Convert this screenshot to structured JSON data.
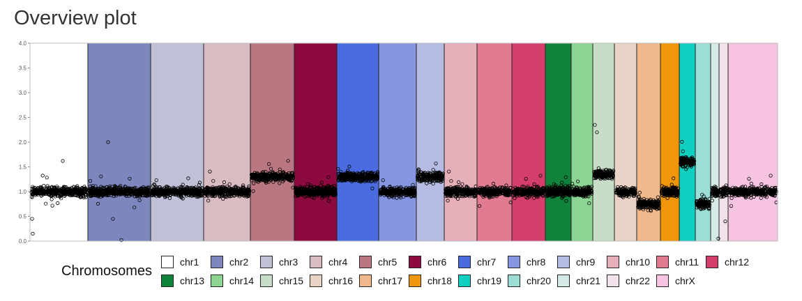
{
  "title": "Overview plot",
  "legend_title": "Chromosomes",
  "chart_data": {
    "type": "scatter",
    "ylim": [
      0,
      4
    ],
    "yticks": [
      "0.0",
      "0.5",
      "1.0",
      "1.5",
      "2.0",
      "2.5",
      "3.0",
      "3.5",
      "4.0"
    ],
    "grid": false,
    "legend_placement": "bottom",
    "chromosomes": [
      {
        "name": "chr1",
        "color": "#ffffff",
        "baseline": 1.0
      },
      {
        "name": "chr2",
        "color": "#7e87bd",
        "baseline": 1.0
      },
      {
        "name": "chr3",
        "color": "#bfc1d6",
        "baseline": 1.0
      },
      {
        "name": "chr4",
        "color": "#d9bbc2",
        "baseline": 1.0
      },
      {
        "name": "chr5",
        "color": "#b97782",
        "baseline": 1.3
      },
      {
        "name": "chr6",
        "color": "#8c0a3e",
        "baseline": 1.0
      },
      {
        "name": "chr7",
        "color": "#4a6ce0",
        "baseline": 1.3
      },
      {
        "name": "chr8",
        "color": "#8595e1",
        "baseline": 1.0
      },
      {
        "name": "chr9",
        "color": "#b5bbe3",
        "baseline": 1.3
      },
      {
        "name": "chr10",
        "color": "#e6afb9",
        "baseline": 1.0
      },
      {
        "name": "chr11",
        "color": "#e07b91",
        "baseline": 1.0
      },
      {
        "name": "chr12",
        "color": "#d33f6a",
        "baseline": 1.0
      },
      {
        "name": "chr13",
        "color": "#11823b",
        "baseline": 1.0
      },
      {
        "name": "chr14",
        "color": "#8dd593",
        "baseline": 1.0
      },
      {
        "name": "chr15",
        "color": "#c6dec7",
        "baseline": 1.35
      },
      {
        "name": "chr16",
        "color": "#ead3c6",
        "baseline": 1.0
      },
      {
        "name": "chr17",
        "color": "#f0b98d",
        "baseline": 0.75
      },
      {
        "name": "chr18",
        "color": "#ef9708",
        "baseline": 1.0
      },
      {
        "name": "chr19",
        "color": "#0fcfc0",
        "baseline": 1.6
      },
      {
        "name": "chr20",
        "color": "#9cded6",
        "baseline": 0.75
      },
      {
        "name": "chr21",
        "color": "#d5eae7",
        "baseline": 1.0
      },
      {
        "name": "chr22",
        "color": "#f3e1eb",
        "baseline": 1.0
      },
      {
        "name": "chrX",
        "color": "#f6c4e1",
        "baseline": 1.0
      }
    ]
  }
}
